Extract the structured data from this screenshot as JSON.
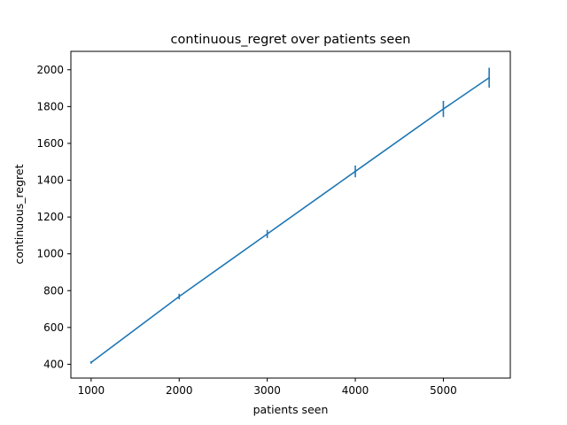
{
  "chart_data": {
    "type": "line",
    "title": "continuous_regret over patients seen",
    "xlabel": "patients seen",
    "ylabel": "continuous_regret",
    "xlim": [
      770,
      5760
    ],
    "ylim": [
      325,
      2100
    ],
    "xticks": [
      1000,
      2000,
      3000,
      4000,
      5000
    ],
    "yticks": [
      400,
      600,
      800,
      1000,
      1200,
      1400,
      1600,
      1800,
      2000
    ],
    "grid": false,
    "legend": "none",
    "series": [
      {
        "color": "#1f77b4",
        "x": [
          1000,
          2000,
          3000,
          4000,
          5000,
          5520
        ],
        "y": [
          410,
          768,
          1108,
          1448,
          1787,
          1957
        ],
        "err": [
          7,
          15,
          22,
          32,
          44,
          54
        ]
      }
    ]
  }
}
